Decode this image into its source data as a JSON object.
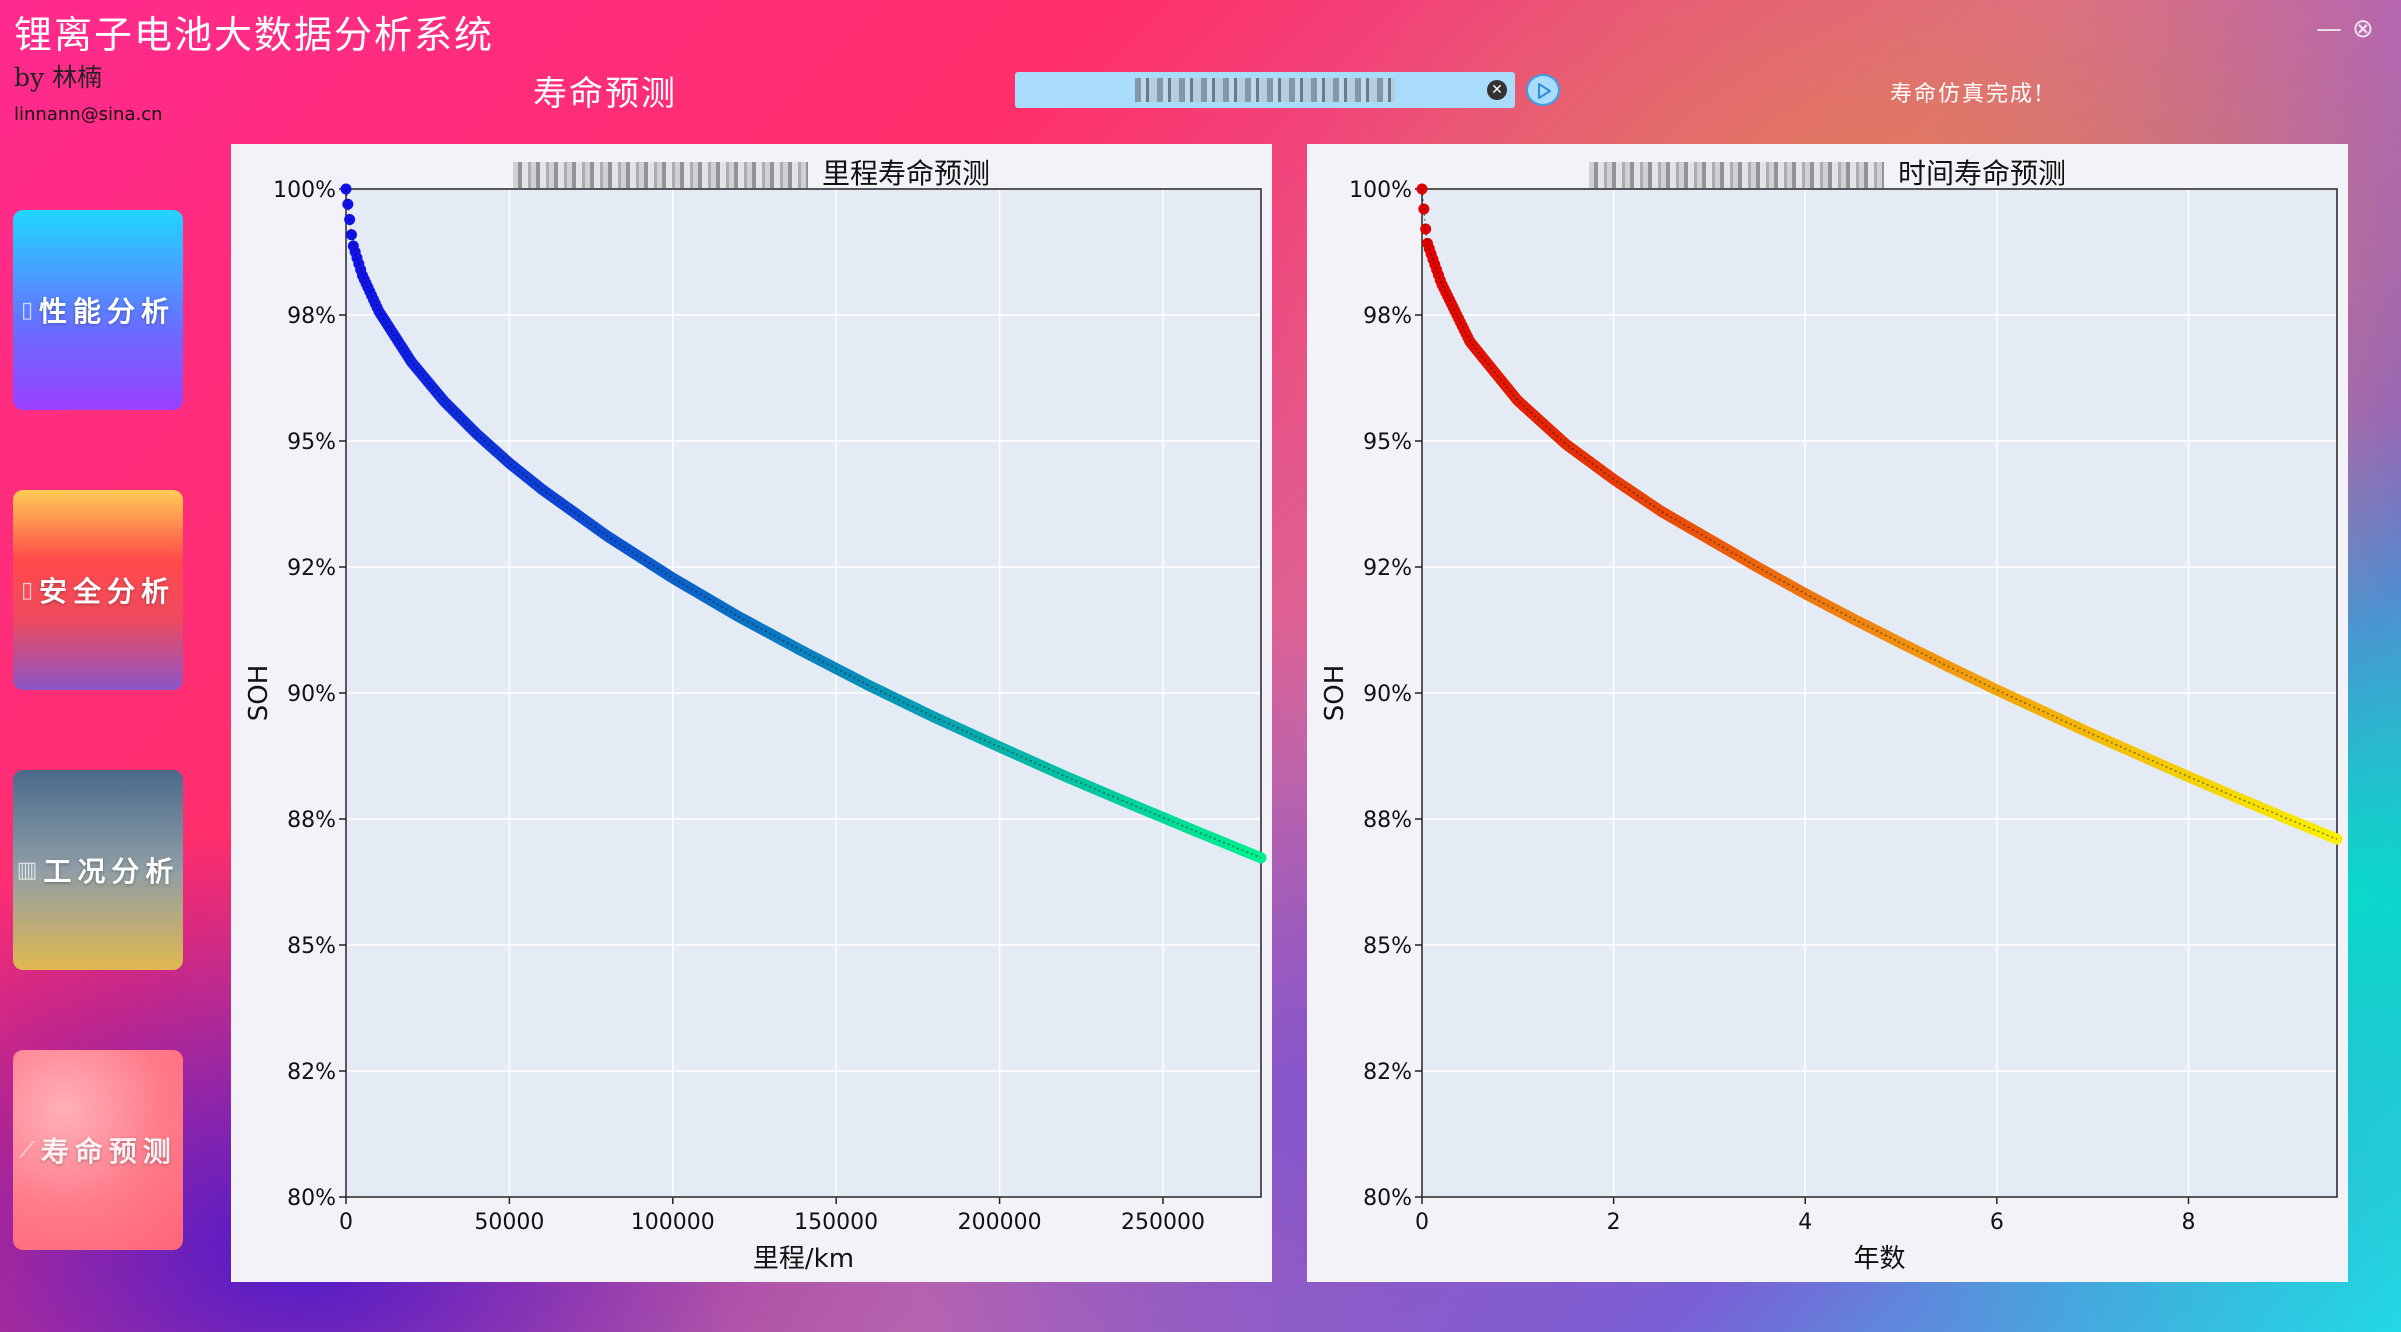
{
  "app": {
    "title": "锂离子电池大数据分析系统",
    "byline": "by 林楠",
    "email": "linnann@sina.cn",
    "minimize_icon": "minimize-icon",
    "close_icon": "close-circle-icon"
  },
  "header": {
    "page_title": "寿命预测",
    "file_path_value": "",
    "clear_icon": "clear-x-icon",
    "run_icon": "play-icon",
    "status": "寿命仿真完成!"
  },
  "sidebar": {
    "items": [
      {
        "label": "性能分析",
        "icon": "battery-icon"
      },
      {
        "label": "安全分析",
        "icon": "battery-alert-icon"
      },
      {
        "label": "工况分析",
        "icon": "bar-chart-icon"
      },
      {
        "label": "寿命预测",
        "icon": "line-chart-icon",
        "active": true
      }
    ]
  },
  "chart_data": [
    {
      "type": "scatter",
      "title": "里程寿命预测",
      "xlabel": "里程/km",
      "ylabel": "SOH",
      "xlim": [
        0,
        280000
      ],
      "ylim": [
        0.8,
        1.0
      ],
      "xticks": [
        0,
        50000,
        100000,
        150000,
        200000,
        250000
      ],
      "xtick_labels": [
        "0",
        "50000",
        "100000",
        "150000",
        "200000",
        "250000"
      ],
      "yticks": [
        0.8,
        0.825,
        0.85,
        0.875,
        0.9,
        0.925,
        0.95,
        0.975,
        1.0
      ],
      "ytick_labels": [
        "80%",
        "82%",
        "85%",
        "88%",
        "90%",
        "92%",
        "95%",
        "98%",
        "100%"
      ],
      "grid": true,
      "colormap": [
        "#1010e8",
        "#0a80c0",
        "#00f090"
      ],
      "x": [
        0,
        2000,
        5000,
        10000,
        20000,
        30000,
        40000,
        50000,
        60000,
        80000,
        100000,
        120000,
        140000,
        160000,
        180000,
        200000,
        220000,
        240000,
        260000,
        280000
      ],
      "y": [
        1.0,
        0.9892,
        0.9829,
        0.9758,
        0.9657,
        0.9579,
        0.9514,
        0.9456,
        0.9404,
        0.9311,
        0.9228,
        0.9152,
        0.9082,
        0.9015,
        0.8952,
        0.8893,
        0.8835,
        0.878,
        0.8726,
        0.8673
      ]
    },
    {
      "type": "scatter",
      "title": "时间寿命预测",
      "xlabel": "年数",
      "ylabel": "SOH",
      "xlim": [
        0,
        9.55
      ],
      "ylim": [
        0.8,
        1.0
      ],
      "xticks": [
        0,
        2,
        4,
        6,
        8
      ],
      "xtick_labels": [
        "0",
        "2",
        "4",
        "6",
        "8"
      ],
      "yticks": [
        0.8,
        0.825,
        0.85,
        0.875,
        0.9,
        0.925,
        0.95,
        0.975,
        1.0
      ],
      "ytick_labels": [
        "80%",
        "82%",
        "85%",
        "88%",
        "90%",
        "92%",
        "95%",
        "98%",
        "100%"
      ],
      "grid": true,
      "colormap": [
        "#e00000",
        "#f08a10",
        "#f8f000"
      ],
      "x": [
        0,
        0.05,
        0.2,
        0.5,
        1,
        1.5,
        2,
        2.5,
        3,
        3.5,
        4,
        4.5,
        5,
        5.5,
        6,
        6.5,
        7,
        7.5,
        8,
        8.5,
        9,
        9.55
      ],
      "y": [
        1.0,
        0.9896,
        0.9814,
        0.9697,
        0.958,
        0.9494,
        0.9424,
        0.936,
        0.9305,
        0.925,
        0.9197,
        0.9147,
        0.9099,
        0.9052,
        0.9006,
        0.8962,
        0.8918,
        0.8876,
        0.8834,
        0.8793,
        0.8753,
        0.871
      ]
    }
  ]
}
